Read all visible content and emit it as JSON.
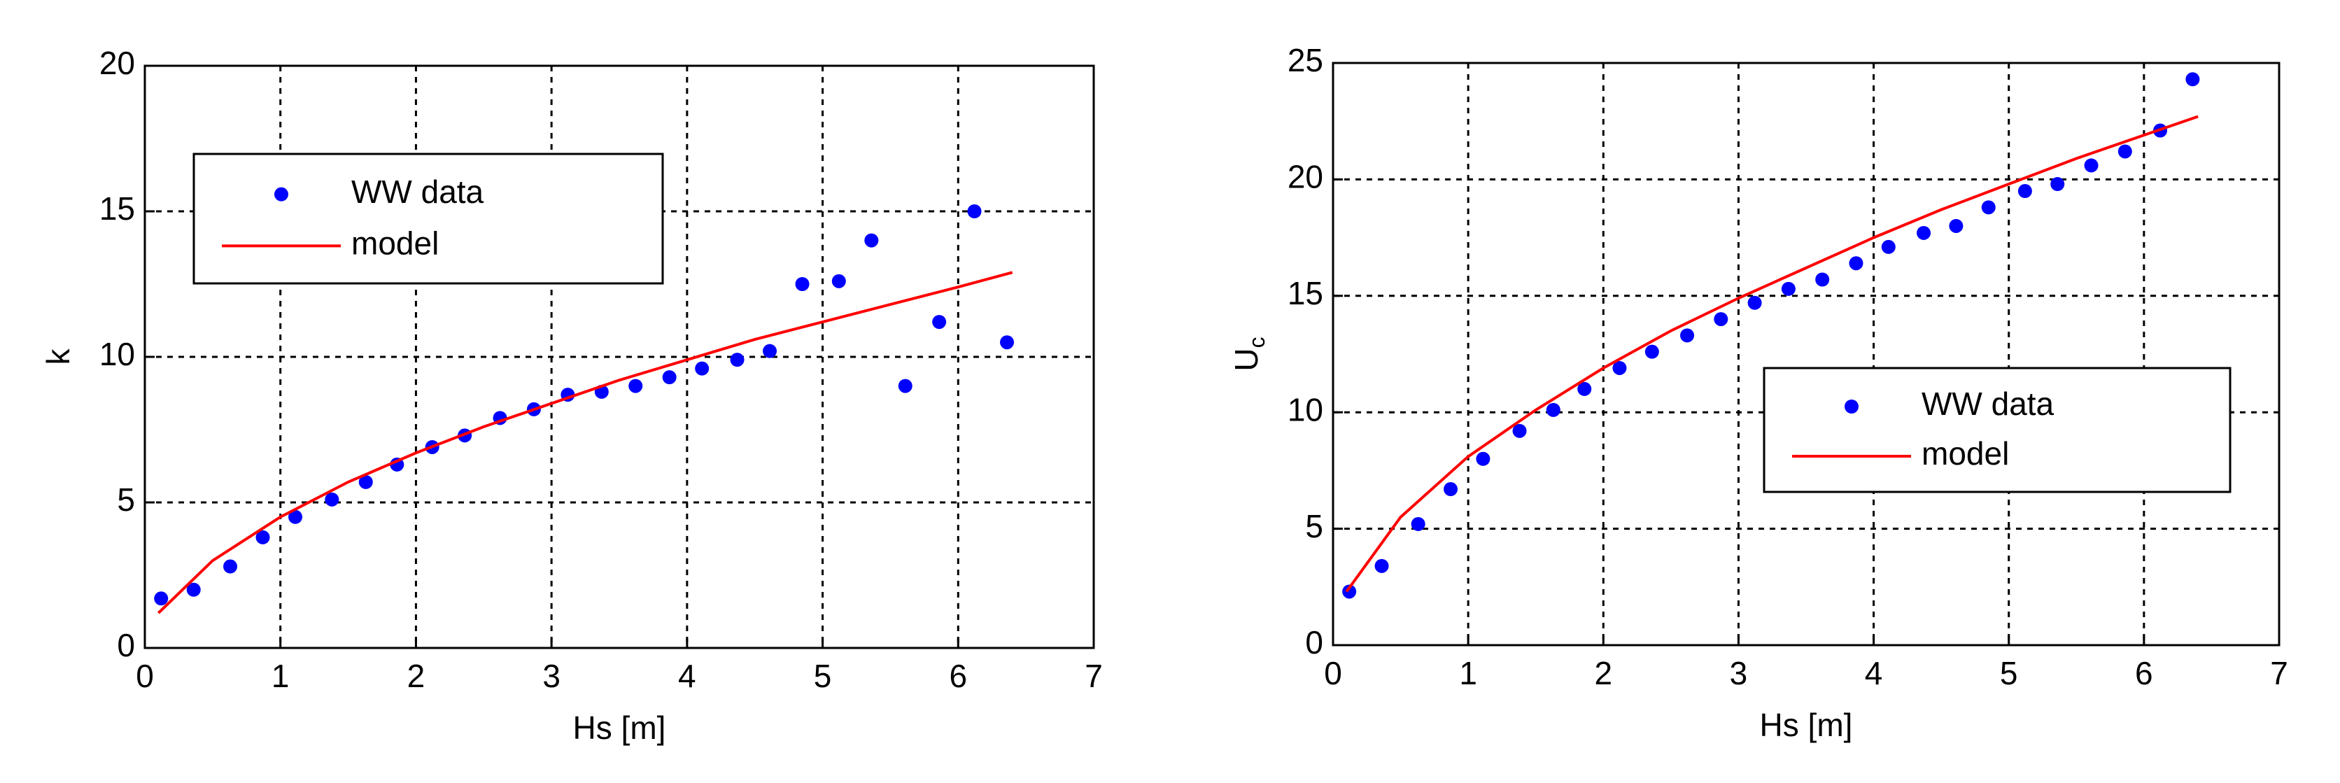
{
  "chart_data": [
    {
      "type": "scatter",
      "xlabel": "Hs [m]",
      "ylabel": "k",
      "xlim": [
        0,
        7
      ],
      "ylim": [
        0,
        20
      ],
      "xticks": [
        0,
        1,
        2,
        3,
        4,
        5,
        6,
        7
      ],
      "yticks": [
        0,
        5,
        10,
        15,
        20
      ],
      "grid": true,
      "legend_loc": "upper left",
      "series": [
        {
          "name": "WW data",
          "color": "#0000ff",
          "kind": "scatter",
          "x": [
            0.12,
            0.36,
            0.63,
            0.87,
            1.11,
            1.38,
            1.63,
            1.86,
            2.12,
            2.36,
            2.62,
            2.87,
            3.12,
            3.37,
            3.62,
            3.87,
            4.11,
            4.37,
            4.61,
            4.85,
            5.12,
            5.36,
            5.61,
            5.86,
            6.12,
            6.36
          ],
          "values": [
            1.7,
            2.0,
            2.8,
            3.8,
            4.5,
            5.1,
            5.7,
            6.3,
            6.9,
            7.3,
            7.9,
            8.2,
            8.7,
            8.8,
            9.0,
            9.3,
            9.6,
            9.9,
            10.2,
            12.5,
            12.6,
            14.0,
            9.0,
            11.2,
            15.0,
            10.5
          ]
        },
        {
          "name": "model",
          "color": "#ff0000",
          "kind": "line",
          "x": [
            0.1,
            0.5,
            1,
            1.5,
            2,
            2.5,
            3,
            3.5,
            4,
            4.5,
            5,
            5.5,
            6,
            6.4
          ],
          "values": [
            1.2,
            3.0,
            4.5,
            5.7,
            6.7,
            7.6,
            8.4,
            9.2,
            9.9,
            10.6,
            11.2,
            11.8,
            12.4,
            12.9
          ]
        }
      ]
    },
    {
      "type": "scatter",
      "xlabel": "Hs [m]",
      "ylabel": "U",
      "ylabel_sub": "c",
      "xlim": [
        0,
        7
      ],
      "ylim": [
        0,
        25
      ],
      "xticks": [
        0,
        1,
        2,
        3,
        4,
        5,
        6,
        7
      ],
      "yticks": [
        0,
        5,
        10,
        15,
        20,
        25
      ],
      "grid": true,
      "legend_loc": "center right",
      "series": [
        {
          "name": "WW data",
          "color": "#0000ff",
          "kind": "scatter",
          "x": [
            0.12,
            0.36,
            0.63,
            0.87,
            1.11,
            1.38,
            1.63,
            1.86,
            2.12,
            2.36,
            2.62,
            2.87,
            3.12,
            3.37,
            3.62,
            3.87,
            4.11,
            4.37,
            4.61,
            4.85,
            5.12,
            5.36,
            5.61,
            5.86,
            6.12,
            6.36
          ],
          "values": [
            2.3,
            3.4,
            5.2,
            6.7,
            8.0,
            9.2,
            10.1,
            11.0,
            11.9,
            12.6,
            13.3,
            14.0,
            14.7,
            15.3,
            15.7,
            16.4,
            17.1,
            17.7,
            18.0,
            18.8,
            19.5,
            19.8,
            20.6,
            21.2,
            22.1,
            24.3
          ]
        },
        {
          "name": "model",
          "color": "#ff0000",
          "kind": "line",
          "x": [
            0.1,
            0.5,
            1,
            1.5,
            2,
            2.5,
            3,
            3.5,
            4,
            4.5,
            5,
            5.5,
            6,
            6.4
          ],
          "values": [
            2.3,
            5.5,
            8.1,
            10.1,
            11.9,
            13.5,
            14.9,
            16.2,
            17.5,
            18.7,
            19.8,
            20.9,
            21.9,
            22.7
          ]
        }
      ]
    }
  ]
}
